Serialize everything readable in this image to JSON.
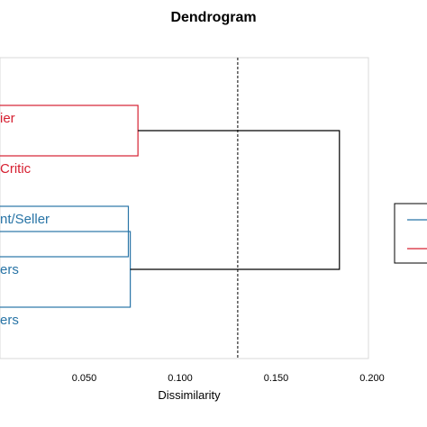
{
  "chart_data": {
    "type": "dendrogram",
    "title": "Dendrogram",
    "xlabel": "Dissimilarity",
    "xlim": [
      0.0,
      0.2
    ],
    "xticks": [
      "0.050",
      "0.100",
      "0.150",
      "0.200"
    ],
    "xtick_values": [
      0.05,
      0.1,
      0.15,
      0.2
    ],
    "cutoff": 0.13,
    "leaves": [
      {
        "label": "ier",
        "color": "#d62031"
      },
      {
        "label": "Critic",
        "color": "#d62031"
      },
      {
        "label": "nt/Seller",
        "color": "#2874a6"
      },
      {
        "label": "ers",
        "color": "#2874a6"
      },
      {
        "label": "ers",
        "color": "#2874a6"
      }
    ],
    "clusters": [
      {
        "color": "#d62031",
        "leaves": [
          0,
          1
        ],
        "height": 0.078
      },
      {
        "color": "#2874a6",
        "leaves": [
          2,
          3
        ],
        "height": 0.073
      },
      {
        "color": "#2874a6",
        "leaves": [
          2,
          3,
          4
        ],
        "height": 0.074
      },
      {
        "color": "#000000",
        "leaves": [
          0,
          1,
          2,
          3,
          4
        ],
        "height": 0.183
      }
    ],
    "legend": {
      "placement": "right",
      "entries": [
        {
          "color": "#2874a6"
        },
        {
          "color": "#d62031"
        }
      ]
    }
  }
}
